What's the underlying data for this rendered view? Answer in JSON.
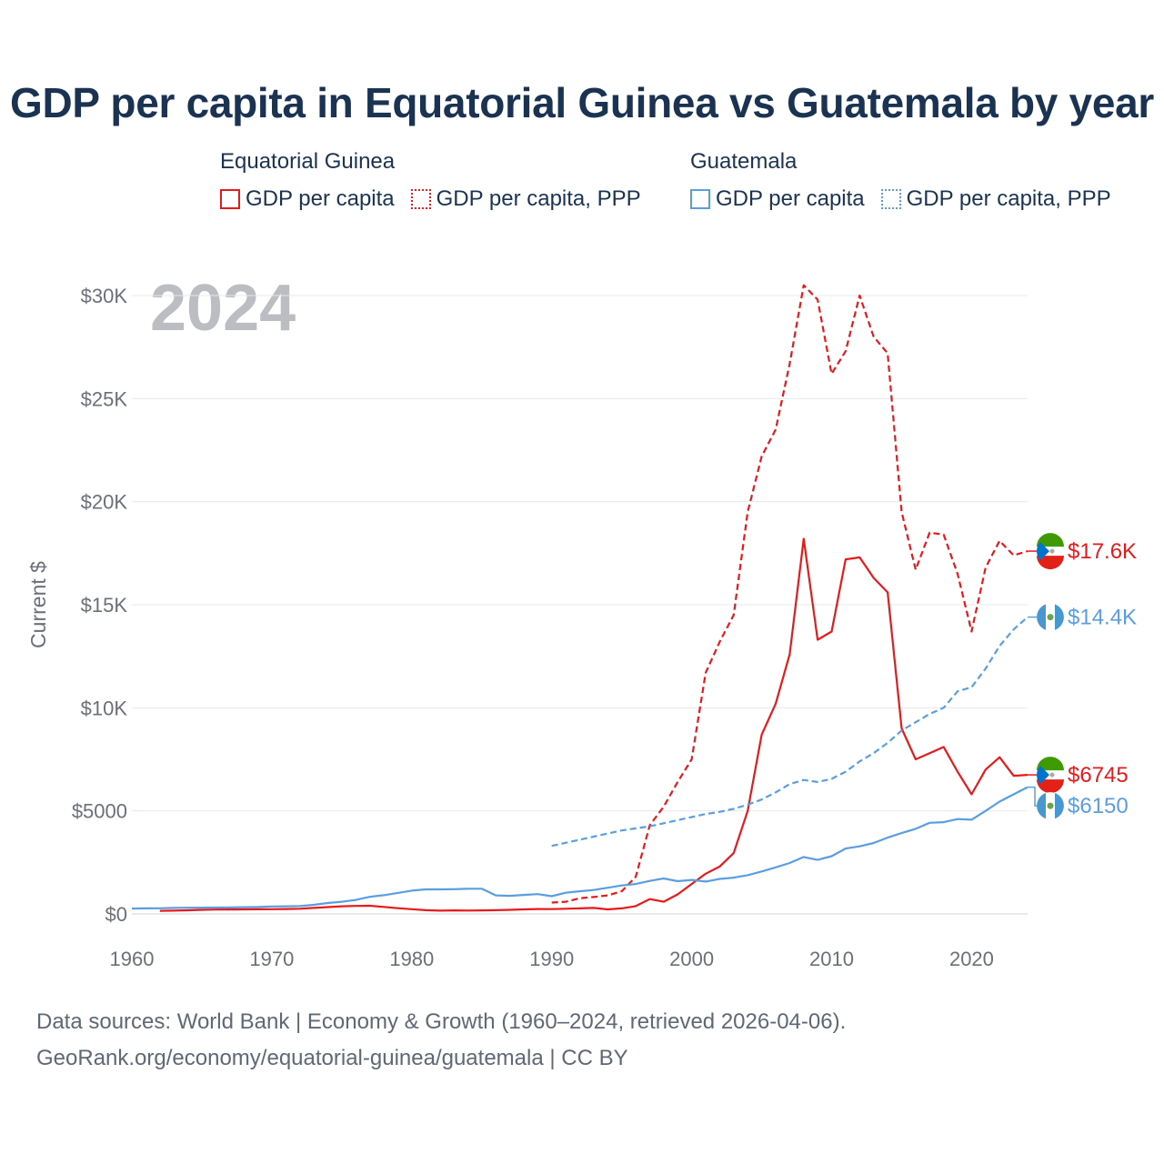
{
  "title": "GDP per capita in Equatorial Guinea vs Guatemala by year",
  "legend": {
    "groups": [
      {
        "name": "Equatorial Guinea",
        "items": [
          "GDP per capita",
          "GDP per capita, PPP"
        ]
      },
      {
        "name": "Guatemala",
        "items": [
          "GDP per capita",
          "GDP per capita, PPP"
        ]
      }
    ]
  },
  "colors": {
    "equatorial_guinea": "#e8191a",
    "guatemala": "#5b9ee0"
  },
  "year_stamp": "2024",
  "source": {
    "line1": "Data sources: World Bank | Economy & Growth (1960–2024, retrieved 2026-04-06).",
    "line2": "GeoRank.org/economy/equatorial-guinea/guatemala | CC BY"
  },
  "chart_data": {
    "type": "line",
    "ylabel": "Current $",
    "xlim": [
      1960,
      2024
    ],
    "ylim": [
      0,
      30000
    ],
    "x_ticks": [
      1960,
      1970,
      1980,
      1990,
      2000,
      2010,
      2020
    ],
    "x_tick_labels": [
      "1960",
      "1970",
      "1980",
      "1990",
      "2000",
      "2010",
      "2020"
    ],
    "y_ticks": [
      0,
      5000,
      10000,
      15000,
      20000,
      25000,
      30000
    ],
    "y_tick_labels": [
      "$0",
      "$5000",
      "$10K",
      "$15K",
      "$20K",
      "$25K",
      "$30K"
    ],
    "grid": true,
    "series": [
      {
        "name": "Equatorial Guinea — GDP per capita",
        "country": "equatorial_guinea",
        "style": "solid",
        "end_label": "$6745",
        "points": [
          [
            1962,
            150
          ],
          [
            1963,
            160
          ],
          [
            1964,
            175
          ],
          [
            1965,
            200
          ],
          [
            1966,
            210
          ],
          [
            1967,
            215
          ],
          [
            1968,
            220
          ],
          [
            1969,
            225
          ],
          [
            1970,
            230
          ],
          [
            1971,
            240
          ],
          [
            1972,
            250
          ],
          [
            1973,
            290
          ],
          [
            1974,
            330
          ],
          [
            1975,
            370
          ],
          [
            1976,
            390
          ],
          [
            1977,
            395
          ],
          [
            1978,
            340
          ],
          [
            1979,
            280
          ],
          [
            1980,
            230
          ],
          [
            1981,
            180
          ],
          [
            1982,
            160
          ],
          [
            1983,
            170
          ],
          [
            1984,
            165
          ],
          [
            1985,
            170
          ],
          [
            1986,
            180
          ],
          [
            1987,
            200
          ],
          [
            1988,
            220
          ],
          [
            1989,
            240
          ],
          [
            1990,
            235
          ],
          [
            1991,
            250
          ],
          [
            1992,
            270
          ],
          [
            1993,
            290
          ],
          [
            1994,
            220
          ],
          [
            1995,
            270
          ],
          [
            1996,
            380
          ],
          [
            1997,
            720
          ],
          [
            1998,
            590
          ],
          [
            1999,
            950
          ],
          [
            2000,
            1450
          ],
          [
            2001,
            1950
          ],
          [
            2002,
            2300
          ],
          [
            2003,
            2950
          ],
          [
            2004,
            5000
          ],
          [
            2005,
            8700
          ],
          [
            2006,
            10200
          ],
          [
            2007,
            12600
          ],
          [
            2008,
            18200
          ],
          [
            2009,
            13300
          ],
          [
            2010,
            13700
          ],
          [
            2011,
            17200
          ],
          [
            2012,
            17300
          ],
          [
            2013,
            16300
          ],
          [
            2014,
            15600
          ],
          [
            2015,
            9000
          ],
          [
            2016,
            7500
          ],
          [
            2017,
            7800
          ],
          [
            2018,
            8100
          ],
          [
            2019,
            6900
          ],
          [
            2020,
            5800
          ],
          [
            2021,
            7000
          ],
          [
            2022,
            7600
          ],
          [
            2023,
            6700
          ],
          [
            2024,
            6745
          ]
        ]
      },
      {
        "name": "Equatorial Guinea — GDP per capita, PPP",
        "country": "equatorial_guinea",
        "style": "dashed",
        "end_label": "$17.6K",
        "points": [
          [
            1990,
            550
          ],
          [
            1991,
            590
          ],
          [
            1992,
            760
          ],
          [
            1993,
            820
          ],
          [
            1994,
            900
          ],
          [
            1995,
            1100
          ],
          [
            1996,
            1800
          ],
          [
            1997,
            4300
          ],
          [
            1998,
            5200
          ],
          [
            1999,
            6400
          ],
          [
            2000,
            7500
          ],
          [
            2001,
            11700
          ],
          [
            2002,
            13200
          ],
          [
            2003,
            14500
          ],
          [
            2004,
            19500
          ],
          [
            2005,
            22200
          ],
          [
            2006,
            23500
          ],
          [
            2007,
            26700
          ],
          [
            2008,
            30500
          ],
          [
            2009,
            29800
          ],
          [
            2010,
            26200
          ],
          [
            2011,
            27300
          ],
          [
            2012,
            30000
          ],
          [
            2013,
            28000
          ],
          [
            2014,
            27200
          ],
          [
            2015,
            19500
          ],
          [
            2016,
            16700
          ],
          [
            2017,
            18500
          ],
          [
            2018,
            18400
          ],
          [
            2019,
            16500
          ],
          [
            2020,
            13700
          ],
          [
            2021,
            16800
          ],
          [
            2022,
            18100
          ],
          [
            2023,
            17400
          ],
          [
            2024,
            17600
          ]
        ]
      },
      {
        "name": "Guatemala — GDP per capita",
        "country": "guatemala",
        "style": "solid",
        "end_label": "$6150",
        "points": [
          [
            1960,
            260
          ],
          [
            1961,
            270
          ],
          [
            1962,
            275
          ],
          [
            1963,
            290
          ],
          [
            1964,
            300
          ],
          [
            1965,
            305
          ],
          [
            1966,
            310
          ],
          [
            1967,
            315
          ],
          [
            1968,
            325
          ],
          [
            1969,
            335
          ],
          [
            1970,
            360
          ],
          [
            1971,
            370
          ],
          [
            1972,
            380
          ],
          [
            1973,
            440
          ],
          [
            1974,
            530
          ],
          [
            1975,
            590
          ],
          [
            1976,
            680
          ],
          [
            1977,
            830
          ],
          [
            1978,
            910
          ],
          [
            1979,
            1020
          ],
          [
            1980,
            1130
          ],
          [
            1981,
            1190
          ],
          [
            1982,
            1190
          ],
          [
            1983,
            1200
          ],
          [
            1984,
            1220
          ],
          [
            1985,
            1220
          ],
          [
            1986,
            900
          ],
          [
            1987,
            880
          ],
          [
            1988,
            920
          ],
          [
            1989,
            960
          ],
          [
            1990,
            860
          ],
          [
            1991,
            1030
          ],
          [
            1992,
            1100
          ],
          [
            1993,
            1160
          ],
          [
            1994,
            1270
          ],
          [
            1995,
            1380
          ],
          [
            1996,
            1450
          ],
          [
            1997,
            1600
          ],
          [
            1998,
            1720
          ],
          [
            1999,
            1590
          ],
          [
            2000,
            1650
          ],
          [
            2001,
            1570
          ],
          [
            2002,
            1700
          ],
          [
            2003,
            1760
          ],
          [
            2004,
            1880
          ],
          [
            2005,
            2060
          ],
          [
            2006,
            2260
          ],
          [
            2007,
            2470
          ],
          [
            2008,
            2760
          ],
          [
            2009,
            2620
          ],
          [
            2010,
            2800
          ],
          [
            2011,
            3170
          ],
          [
            2012,
            3280
          ],
          [
            2013,
            3440
          ],
          [
            2014,
            3700
          ],
          [
            2015,
            3920
          ],
          [
            2016,
            4130
          ],
          [
            2017,
            4420
          ],
          [
            2018,
            4450
          ],
          [
            2019,
            4600
          ],
          [
            2020,
            4570
          ],
          [
            2021,
            5000
          ],
          [
            2022,
            5450
          ],
          [
            2023,
            5800
          ],
          [
            2024,
            6150
          ]
        ]
      },
      {
        "name": "Guatemala — GDP per capita, PPP",
        "country": "guatemala",
        "style": "dashed",
        "end_label": "$14.4K",
        "points": [
          [
            1990,
            3300
          ],
          [
            1991,
            3450
          ],
          [
            1992,
            3600
          ],
          [
            1993,
            3750
          ],
          [
            1994,
            3900
          ],
          [
            1995,
            4050
          ],
          [
            1996,
            4150
          ],
          [
            1997,
            4250
          ],
          [
            1998,
            4400
          ],
          [
            1999,
            4550
          ],
          [
            2000,
            4700
          ],
          [
            2001,
            4850
          ],
          [
            2002,
            4950
          ],
          [
            2003,
            5100
          ],
          [
            2004,
            5300
          ],
          [
            2005,
            5550
          ],
          [
            2006,
            5900
          ],
          [
            2007,
            6300
          ],
          [
            2008,
            6500
          ],
          [
            2009,
            6400
          ],
          [
            2010,
            6550
          ],
          [
            2011,
            6900
          ],
          [
            2012,
            7400
          ],
          [
            2013,
            7800
          ],
          [
            2014,
            8300
          ],
          [
            2015,
            8900
          ],
          [
            2016,
            9300
          ],
          [
            2017,
            9700
          ],
          [
            2018,
            10000
          ],
          [
            2019,
            10800
          ],
          [
            2020,
            11000
          ],
          [
            2021,
            11900
          ],
          [
            2022,
            13000
          ],
          [
            2023,
            13800
          ],
          [
            2024,
            14400
          ]
        ]
      }
    ]
  }
}
